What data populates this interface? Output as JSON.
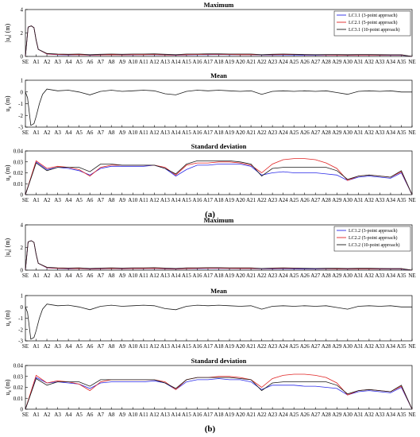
{
  "figure": {
    "label_a": "(a)",
    "label_b": "(b)",
    "x_ticks": [
      "SE",
      "A1",
      "A2",
      "A3",
      "A4",
      "A5",
      "A6",
      "A7",
      "A8",
      "A9",
      "A10",
      "A11",
      "A12",
      "A13",
      "A14",
      "A15",
      "A16",
      "A17",
      "A18",
      "A19",
      "A20",
      "A21",
      "A22",
      "A23",
      "A24",
      "A25",
      "A26",
      "A27",
      "A28",
      "A29",
      "A30",
      "A31",
      "A32",
      "A33",
      "A34",
      "A35",
      "NE"
    ]
  },
  "colors": {
    "blue": "#2a2ae8",
    "red": "#e02424",
    "black": "#1a1a1a"
  },
  "chart_data": [
    {
      "type": "line",
      "title": "Maximum",
      "ylabel": "|u_z| (m)",
      "ylim": [
        0,
        4
      ],
      "yticks": [
        0,
        2,
        4
      ],
      "legend": "top-right",
      "categories": [
        "SE",
        "A1",
        "A2",
        "A3",
        "A4",
        "A5",
        "A6",
        "A7",
        "A8",
        "A9",
        "A10",
        "A11",
        "A12",
        "A13",
        "A14",
        "A15",
        "A16",
        "A17",
        "A18",
        "A19",
        "A20",
        "A21",
        "A22",
        "A23",
        "A24",
        "A25",
        "A26",
        "A27",
        "A28",
        "A29",
        "A30",
        "A31",
        "A32",
        "A33",
        "A34",
        "A35",
        "NE"
      ],
      "series": [
        {
          "name": "LC1.1 (3-point approach)",
          "color": "blue",
          "values": [
            0,
            1.0,
            0.2,
            0.15,
            0.12,
            0.14,
            0.1,
            0.12,
            0.14,
            0.12,
            0.13,
            0.14,
            0.15,
            0.12,
            0.1,
            0.13,
            0.14,
            0.15,
            0.16,
            0.15,
            0.14,
            0.14,
            0.12,
            0.12,
            0.13,
            0.12,
            0.1,
            0.1,
            0.11,
            0.12,
            0.1,
            0.11,
            0.12,
            0.1,
            0.1,
            0.1,
            0
          ]
        },
        {
          "name": "LC2.1 (5-point approach)",
          "color": "red",
          "values": [
            0,
            1.05,
            0.22,
            0.16,
            0.14,
            0.15,
            0.12,
            0.13,
            0.15,
            0.13,
            0.14,
            0.15,
            0.16,
            0.13,
            0.12,
            0.14,
            0.16,
            0.17,
            0.17,
            0.16,
            0.15,
            0.15,
            0.14,
            0.15,
            0.16,
            0.16,
            0.15,
            0.14,
            0.13,
            0.12,
            0.11,
            0.12,
            0.12,
            0.11,
            0.12,
            0.12,
            0
          ]
        },
        {
          "name": "LC3.1 (10-point approach)",
          "color": "black",
          "values": [
            0,
            1.1,
            0.25,
            0.2,
            0.18,
            0.2,
            0.15,
            0.18,
            0.2,
            0.18,
            0.2,
            0.2,
            0.22,
            0.18,
            0.15,
            0.2,
            0.2,
            0.22,
            0.22,
            0.2,
            0.2,
            0.2,
            0.15,
            0.18,
            0.2,
            0.18,
            0.16,
            0.15,
            0.16,
            0.16,
            0.15,
            0.16,
            0.16,
            0.15,
            0.14,
            0.14,
            0
          ]
        }
      ],
      "pre_peak": {
        "x": [
          0.0,
          0.25,
          0.55,
          0.8,
          1.0,
          1.2
        ],
        "y": [
          0.0,
          2.5,
          2.6,
          2.45,
          1.4,
          0.6
        ]
      }
    },
    {
      "type": "line",
      "title": "Mean",
      "ylabel": "u_z (m)",
      "ylim": [
        -3,
        1
      ],
      "yticks": [
        -3,
        -2,
        -1,
        0,
        1
      ],
      "categories": [
        "SE",
        "A1",
        "A2",
        "A3",
        "A4",
        "A5",
        "A6",
        "A7",
        "A8",
        "A9",
        "A10",
        "A11",
        "A12",
        "A13",
        "A14",
        "A15",
        "A16",
        "A17",
        "A18",
        "A19",
        "A20",
        "A21",
        "A22",
        "A23",
        "A24",
        "A25",
        "A26",
        "A27",
        "A28",
        "A29",
        "A30",
        "A31",
        "A32",
        "A33",
        "A34",
        "A35",
        "NE"
      ],
      "series": [
        {
          "color": "black",
          "values": [
            0.0,
            -2.1,
            0.25,
            0.1,
            0.15,
            0.0,
            -0.25,
            0.05,
            0.15,
            0.05,
            0.1,
            0.15,
            0.1,
            -0.15,
            -0.25,
            0.05,
            0.15,
            0.1,
            0.15,
            0.1,
            0.05,
            0.1,
            -0.2,
            0.05,
            0.1,
            0.05,
            0.1,
            0.05,
            0.1,
            -0.05,
            -0.2,
            0.05,
            0.1,
            0.05,
            0.1,
            0.0,
            0.0
          ]
        }
      ],
      "pre_peak": {
        "x": [
          0.0,
          0.2,
          0.5,
          0.8,
          1.0,
          1.3,
          1.6
        ],
        "y": [
          0.0,
          -0.5,
          -2.85,
          -2.7,
          -2.1,
          -1.0,
          -0.2
        ]
      }
    },
    {
      "type": "line",
      "title": "Standard deviation",
      "ylabel": "u_z (m)",
      "ylim": [
        0,
        0.04
      ],
      "yticks": [
        0,
        0.01,
        0.02,
        0.03,
        0.04
      ],
      "categories": [
        "SE",
        "A1",
        "A2",
        "A3",
        "A4",
        "A5",
        "A6",
        "A7",
        "A8",
        "A9",
        "A10",
        "A11",
        "A12",
        "A13",
        "A14",
        "A15",
        "A16",
        "A17",
        "A18",
        "A19",
        "A20",
        "A21",
        "A22",
        "A23",
        "A24",
        "A25",
        "A26",
        "A27",
        "A28",
        "A29",
        "A30",
        "A31",
        "A32",
        "A33",
        "A34",
        "A35",
        "NE"
      ],
      "series": [
        {
          "name": "LC1.1 (3-point approach)",
          "color": "blue",
          "values": [
            0.0,
            0.03,
            0.023,
            0.025,
            0.024,
            0.022,
            0.018,
            0.024,
            0.026,
            0.026,
            0.026,
            0.026,
            0.027,
            0.024,
            0.017,
            0.023,
            0.027,
            0.027,
            0.028,
            0.028,
            0.028,
            0.026,
            0.018,
            0.02,
            0.021,
            0.02,
            0.02,
            0.02,
            0.019,
            0.018,
            0.013,
            0.016,
            0.017,
            0.016,
            0.015,
            0.02,
            0.0
          ]
        },
        {
          "name": "LC2.1 (5-point approach)",
          "color": "red",
          "values": [
            0.0,
            0.031,
            0.024,
            0.026,
            0.025,
            0.023,
            0.017,
            0.025,
            0.027,
            0.027,
            0.027,
            0.027,
            0.027,
            0.025,
            0.018,
            0.027,
            0.029,
            0.029,
            0.03,
            0.03,
            0.029,
            0.027,
            0.02,
            0.028,
            0.032,
            0.033,
            0.033,
            0.032,
            0.029,
            0.024,
            0.013,
            0.017,
            0.018,
            0.017,
            0.016,
            0.021,
            0.0
          ]
        },
        {
          "name": "LC3.1 (10-point approach)",
          "color": "black",
          "values": [
            0.0,
            0.029,
            0.022,
            0.025,
            0.025,
            0.025,
            0.021,
            0.028,
            0.028,
            0.027,
            0.027,
            0.027,
            0.027,
            0.024,
            0.019,
            0.028,
            0.031,
            0.031,
            0.031,
            0.031,
            0.03,
            0.028,
            0.017,
            0.024,
            0.025,
            0.025,
            0.025,
            0.025,
            0.025,
            0.022,
            0.014,
            0.017,
            0.018,
            0.017,
            0.016,
            0.022,
            0.0
          ]
        }
      ]
    },
    {
      "type": "line",
      "title": "Maximum",
      "ylabel": "|u_z| (m)",
      "ylim": [
        0,
        4
      ],
      "yticks": [
        0,
        2,
        4
      ],
      "legend": "top-right",
      "categories": [
        "SE",
        "A1",
        "A2",
        "A3",
        "A4",
        "A5",
        "A6",
        "A7",
        "A8",
        "A9",
        "A10",
        "A11",
        "A12",
        "A13",
        "A14",
        "A15",
        "A16",
        "A17",
        "A18",
        "A19",
        "A20",
        "A21",
        "A22",
        "A23",
        "A24",
        "A25",
        "A26",
        "A27",
        "A28",
        "A29",
        "A30",
        "A31",
        "A32",
        "A33",
        "A34",
        "A35",
        "NE"
      ],
      "series": [
        {
          "name": "LC1.2 (3-point approach)",
          "color": "blue",
          "values": [
            0,
            1.0,
            0.2,
            0.15,
            0.12,
            0.14,
            0.1,
            0.12,
            0.14,
            0.12,
            0.13,
            0.14,
            0.15,
            0.12,
            0.1,
            0.13,
            0.14,
            0.15,
            0.16,
            0.15,
            0.14,
            0.14,
            0.12,
            0.12,
            0.13,
            0.12,
            0.1,
            0.1,
            0.11,
            0.12,
            0.1,
            0.11,
            0.12,
            0.1,
            0.1,
            0.1,
            0
          ]
        },
        {
          "name": "LC2.2 (5-point approach)",
          "color": "red",
          "values": [
            0,
            1.05,
            0.22,
            0.16,
            0.14,
            0.15,
            0.12,
            0.13,
            0.15,
            0.13,
            0.14,
            0.15,
            0.16,
            0.13,
            0.12,
            0.14,
            0.16,
            0.17,
            0.17,
            0.16,
            0.15,
            0.15,
            0.14,
            0.15,
            0.16,
            0.16,
            0.15,
            0.14,
            0.13,
            0.12,
            0.11,
            0.12,
            0.12,
            0.11,
            0.12,
            0.12,
            0
          ]
        },
        {
          "name": "LC3.2 (10-point approach)",
          "color": "black",
          "values": [
            0,
            1.1,
            0.25,
            0.2,
            0.18,
            0.2,
            0.15,
            0.18,
            0.2,
            0.18,
            0.2,
            0.2,
            0.22,
            0.18,
            0.15,
            0.2,
            0.2,
            0.22,
            0.22,
            0.2,
            0.2,
            0.2,
            0.15,
            0.18,
            0.2,
            0.18,
            0.16,
            0.15,
            0.16,
            0.16,
            0.15,
            0.16,
            0.16,
            0.15,
            0.14,
            0.14,
            0
          ]
        }
      ],
      "pre_peak": {
        "x": [
          0.0,
          0.25,
          0.55,
          0.8,
          1.0,
          1.2
        ],
        "y": [
          0.0,
          2.5,
          2.6,
          2.45,
          1.4,
          0.6
        ]
      }
    },
    {
      "type": "line",
      "title": "Mean",
      "ylabel": "u_z (m)",
      "ylim": [
        -3,
        1
      ],
      "yticks": [
        -3,
        -2,
        -1,
        0,
        1
      ],
      "categories": [
        "SE",
        "A1",
        "A2",
        "A3",
        "A4",
        "A5",
        "A6",
        "A7",
        "A8",
        "A9",
        "A10",
        "A11",
        "A12",
        "A13",
        "A14",
        "A15",
        "A16",
        "A17",
        "A18",
        "A19",
        "A20",
        "A21",
        "A22",
        "A23",
        "A24",
        "A25",
        "A26",
        "A27",
        "A28",
        "A29",
        "A30",
        "A31",
        "A32",
        "A33",
        "A34",
        "A35",
        "NE"
      ],
      "series": [
        {
          "color": "black",
          "values": [
            0.0,
            -2.1,
            0.25,
            0.1,
            0.15,
            0.0,
            -0.25,
            0.05,
            0.15,
            0.05,
            0.1,
            0.15,
            0.1,
            -0.15,
            -0.25,
            0.05,
            0.15,
            0.1,
            0.15,
            0.1,
            0.05,
            0.1,
            -0.2,
            0.05,
            0.1,
            0.05,
            0.1,
            0.05,
            0.1,
            -0.05,
            -0.2,
            0.05,
            0.1,
            0.05,
            0.1,
            0.0,
            0.0
          ]
        }
      ],
      "pre_peak": {
        "x": [
          0.0,
          0.2,
          0.5,
          0.8,
          1.0,
          1.3,
          1.6
        ],
        "y": [
          0.0,
          -0.5,
          -2.85,
          -2.7,
          -2.1,
          -1.0,
          -0.2
        ]
      }
    },
    {
      "type": "line",
      "title": "Standard deviation",
      "ylabel": "u_z (m)",
      "ylim": [
        0,
        0.04
      ],
      "yticks": [
        0,
        0.01,
        0.02,
        0.03,
        0.04
      ],
      "categories": [
        "SE",
        "A1",
        "A2",
        "A3",
        "A4",
        "A5",
        "A6",
        "A7",
        "A8",
        "A9",
        "A10",
        "A11",
        "A12",
        "A13",
        "A14",
        "A15",
        "A16",
        "A17",
        "A18",
        "A19",
        "A20",
        "A21",
        "A22",
        "A23",
        "A24",
        "A25",
        "A26",
        "A27",
        "A28",
        "A29",
        "A30",
        "A31",
        "A32",
        "A33",
        "A34",
        "A35",
        "NE"
      ],
      "series": [
        {
          "name": "LC1.2 (3-point approach)",
          "color": "blue",
          "values": [
            0.0,
            0.029,
            0.024,
            0.025,
            0.024,
            0.023,
            0.019,
            0.024,
            0.025,
            0.025,
            0.025,
            0.025,
            0.026,
            0.024,
            0.018,
            0.025,
            0.027,
            0.027,
            0.028,
            0.027,
            0.027,
            0.025,
            0.018,
            0.022,
            0.022,
            0.022,
            0.021,
            0.021,
            0.02,
            0.019,
            0.013,
            0.016,
            0.017,
            0.016,
            0.015,
            0.02,
            0.0
          ]
        },
        {
          "name": "LC2.2 (5-point approach)",
          "color": "red",
          "values": [
            0.0,
            0.031,
            0.024,
            0.026,
            0.025,
            0.023,
            0.017,
            0.025,
            0.027,
            0.027,
            0.027,
            0.027,
            0.027,
            0.025,
            0.018,
            0.027,
            0.029,
            0.029,
            0.03,
            0.03,
            0.029,
            0.027,
            0.02,
            0.028,
            0.031,
            0.032,
            0.032,
            0.031,
            0.029,
            0.024,
            0.013,
            0.017,
            0.018,
            0.017,
            0.016,
            0.021,
            0.0
          ]
        },
        {
          "name": "LC3.2 (10-point approach)",
          "color": "black",
          "values": [
            0.0,
            0.028,
            0.022,
            0.025,
            0.025,
            0.025,
            0.021,
            0.027,
            0.027,
            0.027,
            0.027,
            0.027,
            0.027,
            0.024,
            0.019,
            0.027,
            0.029,
            0.029,
            0.029,
            0.029,
            0.028,
            0.027,
            0.017,
            0.024,
            0.025,
            0.025,
            0.025,
            0.025,
            0.025,
            0.022,
            0.014,
            0.017,
            0.018,
            0.017,
            0.016,
            0.022,
            0.0
          ]
        }
      ]
    }
  ]
}
